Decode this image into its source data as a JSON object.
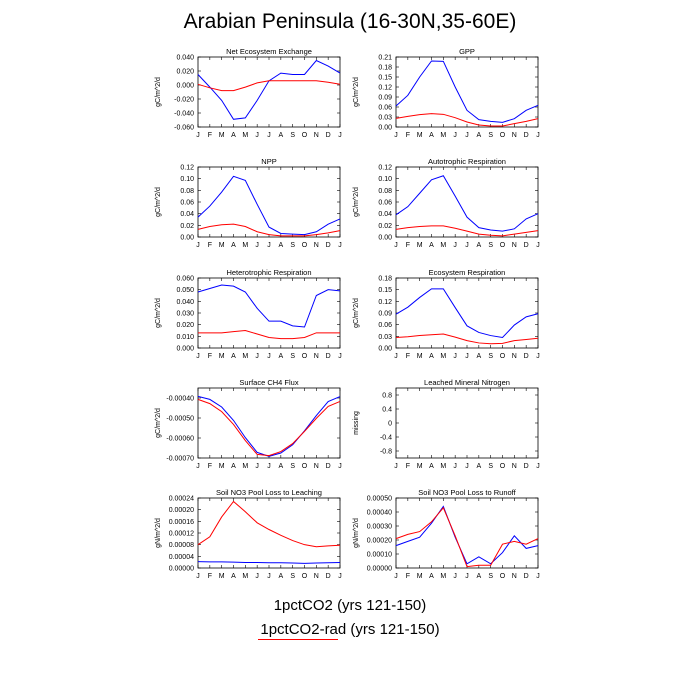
{
  "figure": {
    "title": "Arabian Peninsula (16-30N,35-60E)",
    "colors": {
      "series1": "#0000ff",
      "series2": "#ff0000"
    }
  },
  "legend": [
    {
      "label": "1pctCO2 (yrs 121-150)",
      "color": "#0000ff"
    },
    {
      "label": "1pctCO2-rad (yrs 121-150)",
      "color": "#ff0000"
    }
  ],
  "chart_data": [
    {
      "type": "line",
      "title": "Net Ecosystem Exchange",
      "ylabel": "gC/m^2/d",
      "categories": [
        "J",
        "F",
        "M",
        "A",
        "M",
        "J",
        "J",
        "A",
        "S",
        "O",
        "N",
        "D",
        "J"
      ],
      "ylim": [
        -0.06,
        0.04
      ],
      "yticks": [
        "0.040",
        "0.020",
        "0.000",
        "-0.020",
        "-0.040",
        "-0.060"
      ],
      "series": [
        {
          "values": [
            0.015,
            -0.003,
            -0.022,
            -0.049,
            -0.047,
            -0.022,
            0.006,
            0.017,
            0.015,
            0.015,
            0.035,
            0.027,
            0.017
          ]
        },
        {
          "values": [
            0.001,
            -0.004,
            -0.008,
            -0.008,
            -0.003,
            0.003,
            0.006,
            0.006,
            0.006,
            0.006,
            0.006,
            0.004,
            0.001
          ]
        }
      ]
    },
    {
      "type": "line",
      "title": "GPP",
      "ylabel": "gC/m^2/d",
      "categories": [
        "J",
        "F",
        "M",
        "A",
        "M",
        "J",
        "J",
        "A",
        "S",
        "O",
        "N",
        "D",
        "J"
      ],
      "ylim": [
        0,
        0.21
      ],
      "yticks": [
        "0.21",
        "0.18",
        "0.15",
        "0.12",
        "0.09",
        "0.06",
        "0.03",
        "0.00"
      ],
      "series": [
        {
          "values": [
            0.063,
            0.095,
            0.15,
            0.198,
            0.197,
            0.12,
            0.05,
            0.022,
            0.017,
            0.014,
            0.025,
            0.05,
            0.065
          ]
        },
        {
          "values": [
            0.026,
            0.032,
            0.037,
            0.04,
            0.038,
            0.028,
            0.015,
            0.006,
            0.003,
            0.003,
            0.01,
            0.017,
            0.025
          ]
        }
      ]
    },
    {
      "type": "line",
      "title": "NPP",
      "ylabel": "gC/m^2/d",
      "categories": [
        "J",
        "F",
        "M",
        "A",
        "M",
        "J",
        "J",
        "A",
        "S",
        "O",
        "N",
        "D",
        "J"
      ],
      "ylim": [
        0,
        0.12
      ],
      "yticks": [
        "0.12",
        "0.10",
        "0.08",
        "0.06",
        "0.04",
        "0.02",
        "0.00"
      ],
      "series": [
        {
          "values": [
            0.034,
            0.053,
            0.077,
            0.104,
            0.097,
            0.056,
            0.017,
            0.006,
            0.005,
            0.004,
            0.009,
            0.022,
            0.031
          ]
        },
        {
          "values": [
            0.013,
            0.018,
            0.021,
            0.022,
            0.018,
            0.009,
            0.004,
            0.002,
            0.002,
            0.002,
            0.004,
            0.007,
            0.011
          ]
        }
      ]
    },
    {
      "type": "line",
      "title": "Autotrophic Respiration",
      "ylabel": "gC/m^2/d",
      "categories": [
        "J",
        "F",
        "M",
        "A",
        "M",
        "J",
        "J",
        "A",
        "S",
        "O",
        "N",
        "D",
        "J"
      ],
      "ylim": [
        0,
        0.12
      ],
      "yticks": [
        "0.12",
        "0.10",
        "0.08",
        "0.06",
        "0.04",
        "0.02",
        "0.00"
      ],
      "series": [
        {
          "values": [
            0.038,
            0.052,
            0.075,
            0.098,
            0.105,
            0.07,
            0.034,
            0.016,
            0.012,
            0.01,
            0.014,
            0.031,
            0.04
          ]
        },
        {
          "values": [
            0.013,
            0.016,
            0.018,
            0.019,
            0.019,
            0.015,
            0.01,
            0.005,
            0.003,
            0.002,
            0.005,
            0.008,
            0.011
          ]
        }
      ]
    },
    {
      "type": "line",
      "title": "Heterotrophic Respiration",
      "ylabel": "gC/m^2/d",
      "categories": [
        "J",
        "F",
        "M",
        "A",
        "M",
        "J",
        "J",
        "A",
        "S",
        "O",
        "N",
        "D",
        "J"
      ],
      "ylim": [
        0,
        0.06
      ],
      "yticks": [
        "0.060",
        "0.050",
        "0.040",
        "0.030",
        "0.020",
        "0.010",
        "0.000"
      ],
      "series": [
        {
          "values": [
            0.048,
            0.051,
            0.054,
            0.053,
            0.048,
            0.034,
            0.023,
            0.023,
            0.019,
            0.018,
            0.045,
            0.05,
            0.049
          ]
        },
        {
          "values": [
            0.013,
            0.013,
            0.013,
            0.014,
            0.015,
            0.012,
            0.009,
            0.008,
            0.008,
            0.009,
            0.013,
            0.013,
            0.013
          ]
        }
      ]
    },
    {
      "type": "line",
      "title": "Ecosystem Respiration",
      "ylabel": "gC/m^2/d",
      "categories": [
        "J",
        "F",
        "M",
        "A",
        "M",
        "J",
        "J",
        "A",
        "S",
        "O",
        "N",
        "D",
        "J"
      ],
      "ylim": [
        0,
        0.18
      ],
      "yticks": [
        "0.18",
        "0.15",
        "0.12",
        "0.09",
        "0.06",
        "0.03",
        "0.00"
      ],
      "series": [
        {
          "values": [
            0.087,
            0.105,
            0.13,
            0.152,
            0.152,
            0.104,
            0.057,
            0.04,
            0.032,
            0.027,
            0.059,
            0.08,
            0.088
          ]
        },
        {
          "values": [
            0.027,
            0.029,
            0.032,
            0.034,
            0.036,
            0.028,
            0.019,
            0.013,
            0.011,
            0.012,
            0.019,
            0.022,
            0.025
          ]
        }
      ]
    },
    {
      "type": "line",
      "title": "Surface CH4 Flux",
      "ylabel": "gC/m^2/d",
      "categories": [
        "J",
        "F",
        "M",
        "A",
        "M",
        "J",
        "J",
        "A",
        "S",
        "O",
        "N",
        "D",
        "J"
      ],
      "ylim": [
        -0.0007,
        -0.00035
      ],
      "yticks": [
        "-0.00040",
        "-0.00050",
        "-0.00060",
        "-0.00070"
      ],
      "series": [
        {
          "values": [
            -0.000392,
            -0.000407,
            -0.000445,
            -0.000512,
            -0.000598,
            -0.000672,
            -0.000692,
            -0.000675,
            -0.000634,
            -0.000564,
            -0.000488,
            -0.000418,
            -0.000393
          ]
        },
        {
          "values": [
            -0.000407,
            -0.000428,
            -0.000468,
            -0.000532,
            -0.000613,
            -0.000682,
            -0.000688,
            -0.000668,
            -0.000628,
            -0.000567,
            -0.000502,
            -0.000442,
            -0.000417
          ]
        }
      ]
    },
    {
      "type": "line",
      "title": "Leached Mineral Nitrogen",
      "ylabel": "missing",
      "categories": [
        "J",
        "F",
        "M",
        "A",
        "M",
        "J",
        "J",
        "A",
        "S",
        "O",
        "N",
        "D",
        "J"
      ],
      "ylim": [
        -1,
        1
      ],
      "yticks": [
        "0.8",
        "0.4",
        "0",
        "-0.4",
        "-0.8"
      ],
      "series": []
    },
    {
      "type": "line",
      "title": "Soil NO3 Pool Loss to Leaching",
      "ylabel": "gN/m^2/d",
      "categories": [
        "J",
        "F",
        "M",
        "A",
        "M",
        "J",
        "J",
        "A",
        "S",
        "O",
        "N",
        "D",
        "J"
      ],
      "ylim": [
        0,
        0.00024
      ],
      "yticks": [
        "0.00024",
        "0.00020",
        "0.00016",
        "0.00012",
        "0.00008",
        "0.00004",
        "0.00000"
      ],
      "series": [
        {
          "values": [
            2.2e-05,
            2.1e-05,
            2.1e-05,
            2e-05,
            1.9e-05,
            1.9e-05,
            1.8e-05,
            1.8e-05,
            1.7e-05,
            1.6e-05,
            1.7e-05,
            1.8e-05,
            1.9e-05
          ]
        },
        {
          "values": [
            8e-05,
            0.000107,
            0.000175,
            0.000228,
            0.000193,
            0.000155,
            0.000132,
            0.000112,
            9.4e-05,
            8e-05,
            7.3e-05,
            7.6e-05,
            7.8e-05
          ]
        }
      ]
    },
    {
      "type": "line",
      "title": "Soil NO3 Pool Loss to Runoff",
      "ylabel": "gN/m^2/d",
      "categories": [
        "J",
        "F",
        "M",
        "A",
        "M",
        "J",
        "J",
        "A",
        "S",
        "O",
        "N",
        "D",
        "J"
      ],
      "ylim": [
        0,
        0.0005
      ],
      "yticks": [
        "0.00050",
        "0.00040",
        "0.00030",
        "0.00020",
        "0.00010",
        "0.00000"
      ],
      "series": [
        {
          "values": [
            0.00016,
            0.00019,
            0.00022,
            0.00032,
            0.00044,
            0.00022,
            3e-05,
            8e-05,
            3e-05,
            0.00011,
            0.00023,
            0.00014,
            0.00016
          ]
        },
        {
          "values": [
            0.00021,
            0.00024,
            0.00026,
            0.00033,
            0.00043,
            0.00023,
            1e-05,
            2e-05,
            2e-05,
            0.00017,
            0.00019,
            0.00017,
            0.00021
          ]
        }
      ]
    }
  ]
}
